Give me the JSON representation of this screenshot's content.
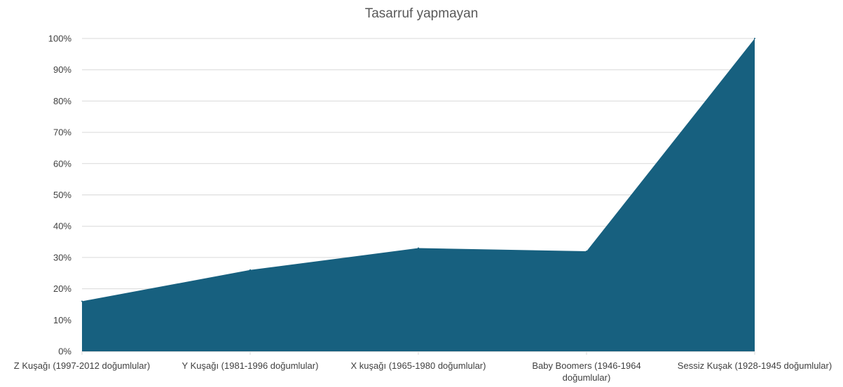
{
  "chart_data": {
    "type": "area",
    "title": "Tasarruf yapmayan",
    "xlabel": "",
    "ylabel": "",
    "categories": [
      [
        "Z Kuşağı (1997-2012 doğumlular)"
      ],
      [
        "Y Kuşağı (1981-1996 doğumlular)"
      ],
      [
        "X kuşağı (1965-1980 doğumlular)"
      ],
      [
        "Baby Boomers (1946-1964",
        "doğumlular)"
      ],
      [
        "Sessiz Kuşak (1928-1945 doğumlular)"
      ]
    ],
    "values": [
      16,
      26,
      33,
      32,
      100
    ],
    "ylim": [
      0,
      100
    ],
    "yticks": [
      "0%",
      "10%",
      "20%",
      "30%",
      "40%",
      "50%",
      "60%",
      "70%",
      "80%",
      "90%",
      "100%"
    ],
    "grid": true,
    "legend": "none",
    "colors": {
      "area": "#17607f",
      "grid": "#d9d9d9",
      "axis_text": "#404040",
      "title_text": "#595959"
    }
  }
}
